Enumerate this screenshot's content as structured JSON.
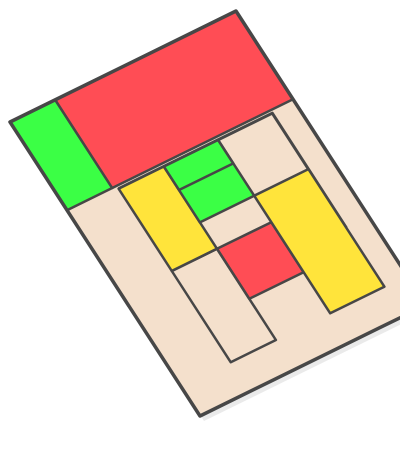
{
  "colors": {
    "background": "#ffffff",
    "board": "#f4e0cc",
    "outline": "#474747",
    "shadow": "#d9d9d9",
    "red": "#ff4d55",
    "green": "#3bff45",
    "yellow": "#ffe43b"
  },
  "board": {
    "rotation_deg": -30,
    "columns": 5,
    "rows": 10
  },
  "tiles": [
    {
      "id": "green-top",
      "color": "green",
      "icon": "green-block"
    },
    {
      "id": "red-top",
      "color": "red",
      "icon": "red-block"
    },
    {
      "id": "yellow-left",
      "color": "yellow",
      "icon": "yellow-block"
    },
    {
      "id": "green-mid",
      "color": "green",
      "icon": "green-block"
    },
    {
      "id": "red-lower",
      "color": "red",
      "icon": "red-block"
    },
    {
      "id": "yellow-bottom",
      "color": "yellow",
      "icon": "yellow-block"
    }
  ]
}
